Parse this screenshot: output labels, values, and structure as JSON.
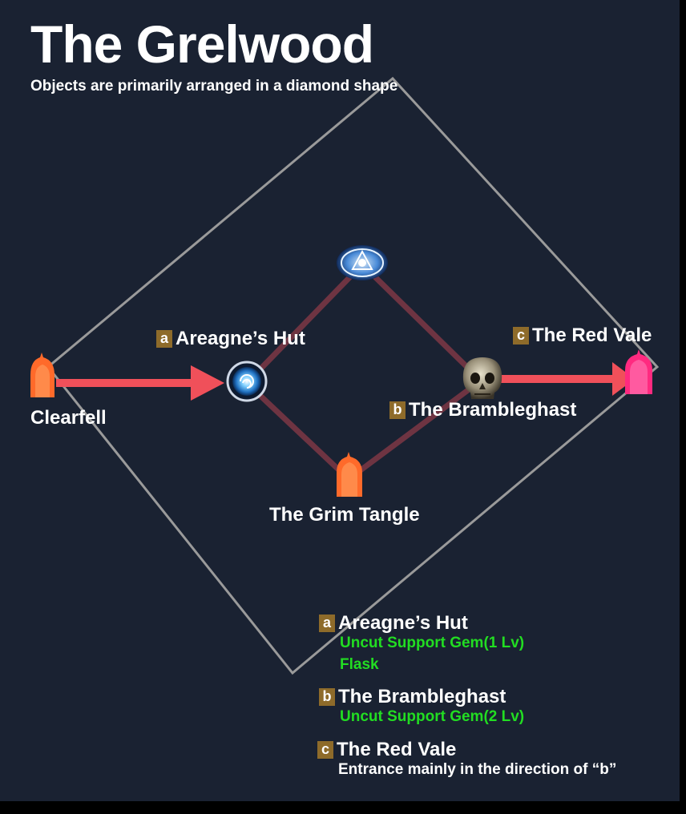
{
  "map": {
    "title": "The Grelwood",
    "subtitle": "Objects are primarily arranged in a diamond shape"
  },
  "locations": {
    "clearfell": {
      "name": "Clearfell",
      "icon": "waypoint-entrance-icon",
      "color": "#ff6a2a"
    },
    "areagne_hut": {
      "badge": "a",
      "name": "Areagne’s Hut",
      "icon": "portal-icon",
      "color": "#3aa0e8"
    },
    "checkpoint": {
      "icon": "checkpoint-rune-icon",
      "color": "#6ab4ff"
    },
    "grim_tangle": {
      "name": "The Grim Tangle",
      "icon": "area-exit-icon",
      "color": "#ff6a2a"
    },
    "brambleghast": {
      "badge": "b",
      "name": "The Brambleghast",
      "icon": "skull-boss-icon",
      "color": "#b0a890"
    },
    "red_vale": {
      "badge": "c",
      "name": "The Red Vale",
      "icon": "area-exit-icon",
      "color": "#ff2a80"
    }
  },
  "legend": [
    {
      "badge": "a",
      "title": "Areagne’s Hut",
      "lines": [
        {
          "text": "Uncut Support Gem(1 Lv)",
          "color": "#22dd22"
        },
        {
          "text": "Flask",
          "color": "#22dd22"
        }
      ]
    },
    {
      "badge": "b",
      "title": "The Brambleghast",
      "lines": [
        {
          "text": "Uncut Support Gem(2 Lv)",
          "color": "#22dd22"
        }
      ]
    },
    {
      "badge": "c",
      "title": "The Red Vale",
      "lines": [
        {
          "text": "Entrance mainly in the direction of “b”",
          "color": "#ffffff"
        }
      ]
    }
  ],
  "colors": {
    "background": "#1a2232",
    "route_arrow": "#f0505a",
    "diamond_outline": "#9a9a9a",
    "inner_path": "#6e3442",
    "badge": "#8e6b2a"
  }
}
